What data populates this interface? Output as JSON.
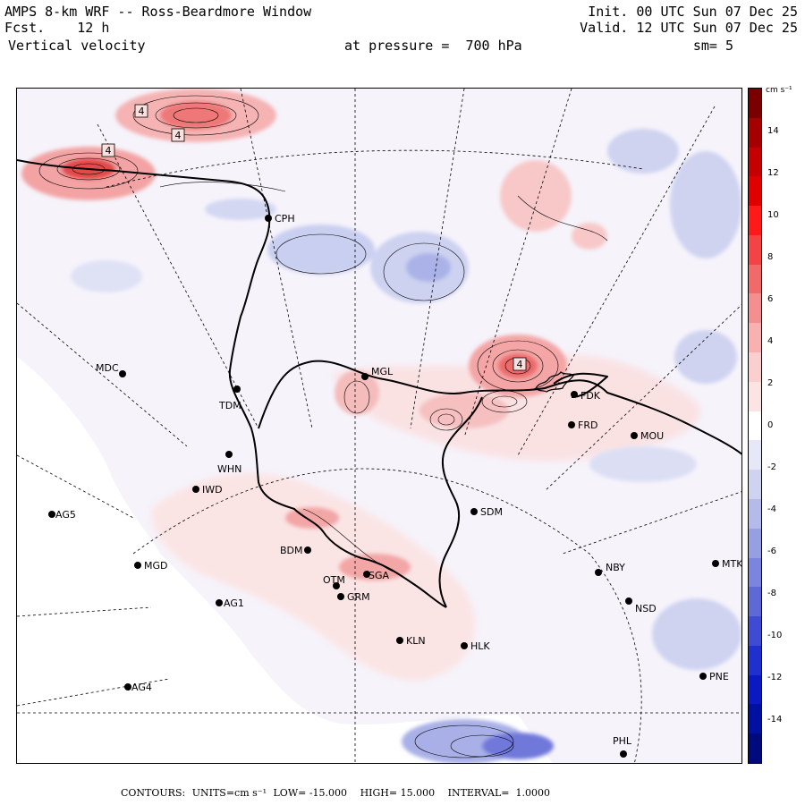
{
  "header": {
    "title": "AMPS 8-km WRF -- Ross-Beardmore Window",
    "fcst_label": "Fcst.",
    "fcst_value": "12 h",
    "field": "Vertical velocity",
    "pressure_text": "at pressure =  700 hPa",
    "init": "Init. 00 UTC Sun 07 Dec 25",
    "valid": "Valid. 12 UTC Sun 07 Dec 25",
    "smooth": "sm= 5"
  },
  "colorbar": {
    "unit": "cm s⁻¹",
    "ticks": [
      "14",
      "12",
      "10",
      "8",
      "6",
      "4",
      "2",
      "0",
      "-2",
      "-4",
      "-6",
      "-8",
      "-10",
      "-12",
      "-14"
    ],
    "colors": [
      "#7a0000",
      "#a40000",
      "#c40000",
      "#e00000",
      "#ff1a1a",
      "#f24444",
      "#f06a6a",
      "#f48f8f",
      "#f8b0b0",
      "#fbcfcf",
      "#fde4e4",
      "#ffffff",
      "#e6e8f7",
      "#cfd3f0",
      "#b4bbea",
      "#979fe3",
      "#7c85dd",
      "#5f69d6",
      "#3f4bd2",
      "#2030cc",
      "#0a1ac0",
      "#0010a0",
      "#000a7a"
    ]
  },
  "contour_labels": [
    "4",
    "4",
    "4",
    "4"
  ],
  "stations": [
    {
      "code": "CPH"
    },
    {
      "code": "MDC"
    },
    {
      "code": "MGL"
    },
    {
      "code": "FDK"
    },
    {
      "code": "FRD"
    },
    {
      "code": "MOU"
    },
    {
      "code": "TDM"
    },
    {
      "code": "WHN"
    },
    {
      "code": "IWD"
    },
    {
      "code": "AG5"
    },
    {
      "code": "SDM"
    },
    {
      "code": "BDM"
    },
    {
      "code": "MGD"
    },
    {
      "code": "NBY"
    },
    {
      "code": "MTK"
    },
    {
      "code": "OTM"
    },
    {
      "code": "SGA"
    },
    {
      "code": "GRM"
    },
    {
      "code": "NSD"
    },
    {
      "code": "AG1"
    },
    {
      "code": "KLN"
    },
    {
      "code": "HLK"
    },
    {
      "code": "AG4"
    },
    {
      "code": "PNE"
    },
    {
      "code": "PHL"
    }
  ],
  "footer": {
    "contours": "CONTOURS:",
    "units": "UNITS=cm s⁻¹",
    "low": "LOW= -15.000",
    "high": "HIGH= 15.000",
    "interval": "INTERVAL=  1.0000"
  }
}
